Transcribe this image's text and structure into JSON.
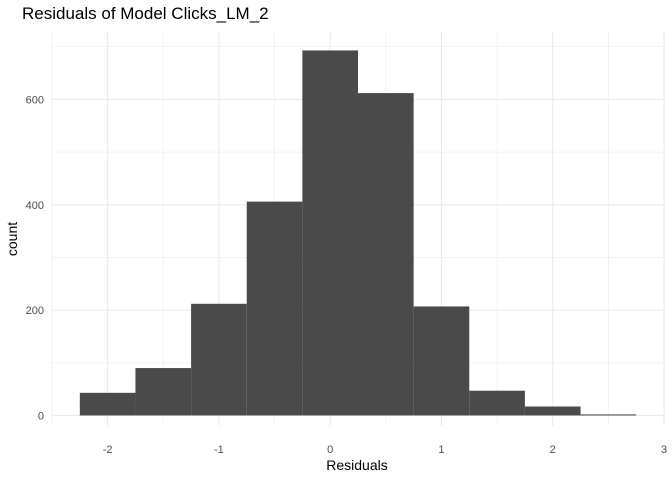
{
  "chart_data": {
    "type": "bar",
    "title": "Residuals of Model Clicks_LM_2",
    "xlabel": "Residuals",
    "ylabel": "count",
    "bins": [
      {
        "x0": -2.25,
        "x1": -1.75,
        "count": 43
      },
      {
        "x0": -1.75,
        "x1": -1.25,
        "count": 90
      },
      {
        "x0": -1.25,
        "x1": -0.75,
        "count": 212
      },
      {
        "x0": -0.75,
        "x1": -0.25,
        "count": 406
      },
      {
        "x0": -0.25,
        "x1": 0.25,
        "count": 693
      },
      {
        "x0": 0.25,
        "x1": 0.75,
        "count": 612
      },
      {
        "x0": 0.75,
        "x1": 1.25,
        "count": 207
      },
      {
        "x0": 1.25,
        "x1": 1.75,
        "count": 47
      },
      {
        "x0": 1.75,
        "x1": 2.25,
        "count": 17
      },
      {
        "x0": 2.25,
        "x1": 2.75,
        "count": 2
      }
    ],
    "xlim": [
      -2.5,
      3.0
    ],
    "ylim": [
      -20,
      728
    ],
    "x_ticks": [
      -2,
      -1,
      0,
      1,
      2,
      3
    ],
    "y_ticks": [
      0,
      200,
      400,
      600
    ],
    "grid": true,
    "bar_color": "#4a4a4a",
    "grid_color": "#ebebeb"
  }
}
